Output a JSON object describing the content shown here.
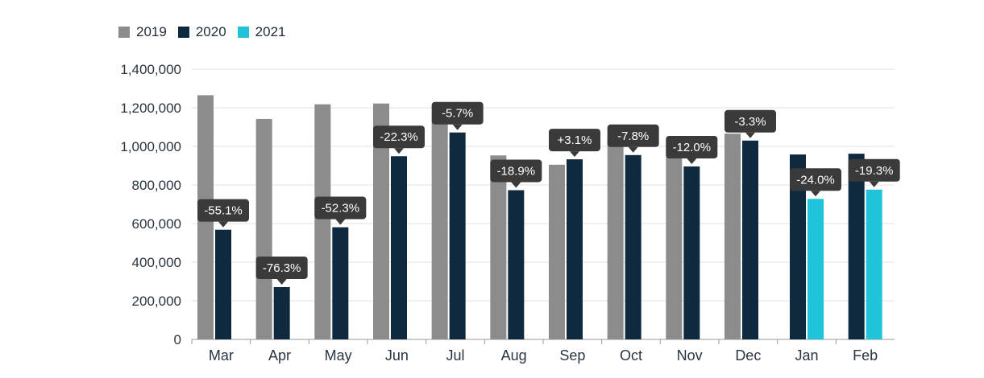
{
  "chart_data": {
    "type": "bar",
    "categories": [
      "Mar",
      "Apr",
      "May",
      "Jun",
      "Jul",
      "Aug",
      "Sep",
      "Oct",
      "Nov",
      "Dec",
      "Jan",
      "Feb"
    ],
    "series": [
      {
        "name": "2019",
        "color": "#8c8c8c",
        "values": [
          1265000,
          1142000,
          1218000,
          1222000,
          1136000,
          953000,
          905000,
          1036000,
          1018000,
          1066000,
          null,
          null
        ]
      },
      {
        "name": "2020",
        "color": "#0f2a3f",
        "values": [
          568000,
          271000,
          581000,
          949000,
          1072000,
          773000,
          933000,
          955000,
          896000,
          1030000,
          958000,
          962000
        ]
      },
      {
        "name": "2021",
        "color": "#1fc4d9",
        "values": [
          null,
          null,
          null,
          null,
          null,
          null,
          null,
          null,
          null,
          null,
          728000,
          776000
        ]
      }
    ],
    "annotations": [
      {
        "category": "Mar",
        "series": "2020",
        "text": "-55.1%"
      },
      {
        "category": "Apr",
        "series": "2020",
        "text": "-76.3%"
      },
      {
        "category": "May",
        "series": "2020",
        "text": "-52.3%"
      },
      {
        "category": "Jun",
        "series": "2020",
        "text": "-22.3%"
      },
      {
        "category": "Jul",
        "series": "2020",
        "text": "-5.7%"
      },
      {
        "category": "Aug",
        "series": "2020",
        "text": "-18.9%"
      },
      {
        "category": "Sep",
        "series": "2020",
        "text": "+3.1%"
      },
      {
        "category": "Oct",
        "series": "2020",
        "text": "-7.8%"
      },
      {
        "category": "Nov",
        "series": "2020",
        "text": "-12.0%"
      },
      {
        "category": "Dec",
        "series": "2020",
        "text": "-3.3%"
      },
      {
        "category": "Jan",
        "series": "2021",
        "text": "-24.0%"
      },
      {
        "category": "Feb",
        "series": "2021",
        "text": "-19.3%"
      }
    ],
    "y_ticks": [
      0,
      200000,
      400000,
      600000,
      800000,
      1000000,
      1200000,
      1400000
    ],
    "y_tick_labels": [
      "0",
      "200,000",
      "400,000",
      "600,000",
      "800,000",
      "1,000,000",
      "1,200,000",
      "1,400,000"
    ],
    "ylim": [
      0,
      1400000
    ],
    "title": "",
    "xlabel": "",
    "ylabel": "",
    "grid": true,
    "legend_position": "top-left",
    "annotation_color": "#3a3a3a"
  }
}
